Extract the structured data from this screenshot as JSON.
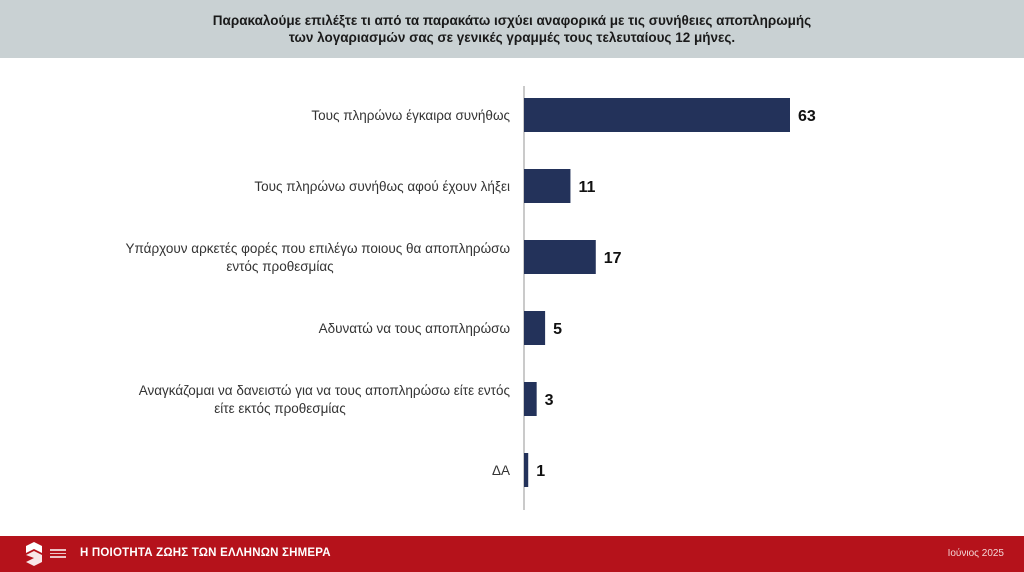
{
  "header": {
    "question_line1": "Παρακαλούμε επιλέξτε τι από τα παρακάτω ισχύει αναφορικά με τις συνήθειες αποπληρωμής",
    "question_line2": "των λογαριασμών σας σε γενικές γραμμές τους τελευταίους 12 μήνες."
  },
  "chart_data": {
    "type": "bar",
    "orientation": "horizontal",
    "categories": [
      [
        "Τους πληρώνω έγκαιρα συνήθως"
      ],
      [
        "Τους πληρώνω συνήθως αφού έχουν λήξει"
      ],
      [
        "Υπάρχουν αρκετές φορές που επιλέγω ποιους θα αποπληρώσω",
        "εντός προθεσμίας"
      ],
      [
        "Αδυνατώ να τους αποπληρώσω"
      ],
      [
        "Αναγκάζομαι να δανειστώ για να τους αποπληρώσω είτε εντός",
        "είτε εκτός προθεσμίας"
      ],
      [
        "ΔΑ"
      ]
    ],
    "values": [
      63,
      11,
      17,
      5,
      3,
      1
    ],
    "value_labels_shown": true,
    "bar_color": "#23325a",
    "axis_line": true,
    "grid": false
  },
  "footer": {
    "title": "Η ΠΟΙΟΤΗΤΑ ΖΩΗΣ ΤΩΝ ΕΛΛΗΝΩΝ ΣΗΜΕΡΑ",
    "date": "Ιούνιος 2025",
    "background_color": "#b5121b"
  }
}
